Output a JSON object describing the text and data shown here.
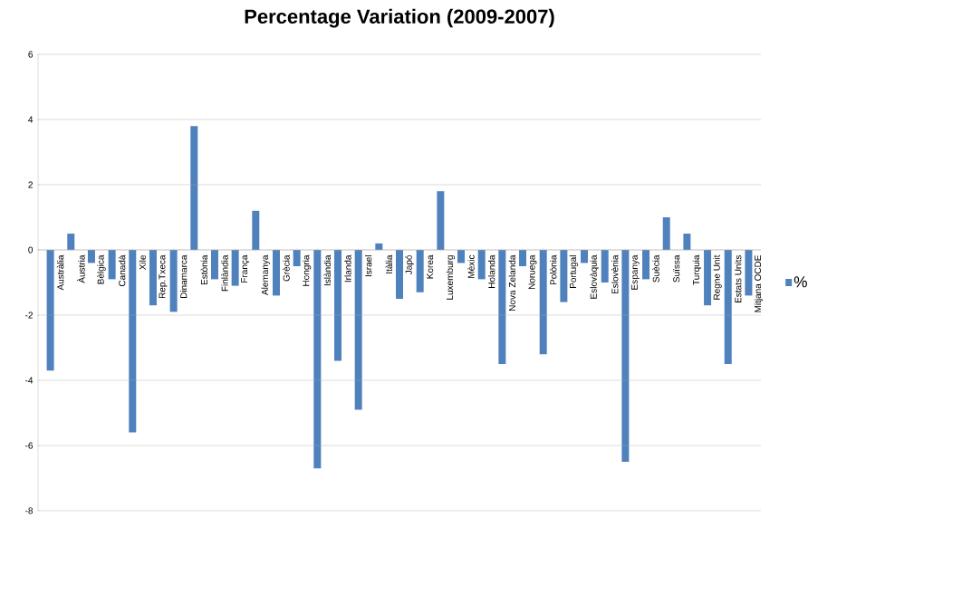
{
  "chart_data": {
    "type": "bar",
    "title": "Percentage Variation (2009-2007)",
    "categories": [
      "Austràlia",
      "Àustria",
      "Bèlgica",
      "Canadà",
      "Xile",
      "Rep.Txeca",
      "Dinamarca",
      "Estònia",
      "Finlàndia",
      "França",
      "Alemanya",
      "Grècia",
      "Hongria",
      "Islàndia",
      "Irlanda",
      "Israel",
      "Itàlia",
      "Japó",
      "Korea",
      "Luxemburg",
      "Mèxic",
      "Holanda",
      "Nova Zelanda",
      "Noruega",
      "Polònia",
      "Portugal",
      "Eslovàquia",
      "Eslovènia",
      "Espanya",
      "Suècia",
      "Suïssa",
      "Turquia",
      "Regne Unit",
      "Estats Units",
      "Mitjana OCDE"
    ],
    "series": [
      {
        "name": "%",
        "color": "#4f81bd",
        "values": [
          -3.7,
          0.5,
          -0.4,
          -0.9,
          -5.6,
          -1.7,
          -1.9,
          3.8,
          -0.9,
          -1.1,
          1.2,
          -1.4,
          -0.5,
          -6.7,
          -3.4,
          -4.9,
          0.2,
          -1.5,
          -1.3,
          1.8,
          -0.4,
          -0.9,
          -3.5,
          -0.5,
          -3.2,
          -1.6,
          -0.4,
          -1.0,
          -6.5,
          -0.9,
          1.0,
          0.5,
          -1.7,
          -3.5,
          -1.4
        ]
      }
    ],
    "ylim": [
      -8,
      6
    ],
    "yticks": [
      -8,
      -6,
      -4,
      -2,
      0,
      2,
      4,
      6
    ],
    "grid": "y",
    "legend": "right"
  }
}
